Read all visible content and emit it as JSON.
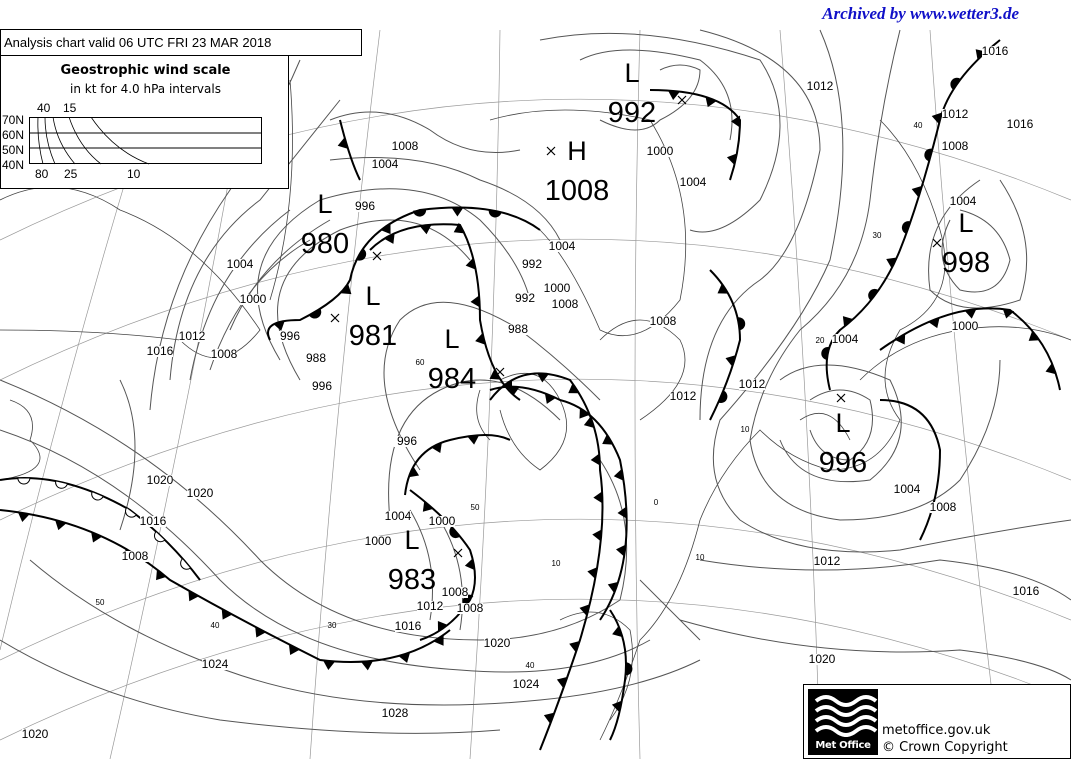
{
  "watermark": "Archived by www.wetter3.de",
  "header": {
    "title": "Analysis chart  valid 06 UTC FRI 23  MAR 2018"
  },
  "wind_scale": {
    "title": "Geostrophic wind scale",
    "subtitle": "in kt for 4.0 hPa intervals",
    "latitudes": [
      "70N",
      "60N",
      "50N",
      "40N"
    ],
    "top_labels": [
      "40",
      "15"
    ],
    "bottom_labels": [
      "80",
      "25",
      "10"
    ]
  },
  "pressure_centres": [
    {
      "type": "L",
      "value": "992"
    },
    {
      "type": "H",
      "value": "1008"
    },
    {
      "type": "L",
      "value": "980"
    },
    {
      "type": "L",
      "value": "981"
    },
    {
      "type": "L",
      "value": "984"
    },
    {
      "type": "L",
      "value": "998"
    },
    {
      "type": "L",
      "value": "996"
    },
    {
      "type": "L",
      "value": "983"
    }
  ],
  "isobar_labels": [
    "1008",
    "1004",
    "996",
    "1012",
    "1016",
    "1000",
    "1004",
    "1008",
    "1012",
    "1004",
    "1008",
    "1000",
    "1016",
    "1012",
    "1008",
    "1004",
    "1000",
    "988",
    "992",
    "996",
    "996",
    "992",
    "988",
    "1000",
    "1004",
    "1000",
    "1008",
    "1012",
    "1004",
    "1008",
    "1012",
    "1016",
    "1020",
    "1020",
    "1016",
    "1008",
    "1004",
    "1000",
    "1012",
    "1008",
    "1016",
    "1020",
    "1020",
    "1024",
    "1024",
    "1028",
    "1020",
    "1016",
    "1012",
    "1008",
    "1004",
    "996"
  ],
  "wind_labels": [
    "60",
    "50",
    "40",
    "30",
    "10",
    "40",
    "20",
    "30",
    "40",
    "10",
    "10",
    "50",
    "0"
  ],
  "footer": {
    "logo_text": "Met Office",
    "site": "metoffice.gov.uk",
    "copyright": "© Crown Copyright"
  }
}
